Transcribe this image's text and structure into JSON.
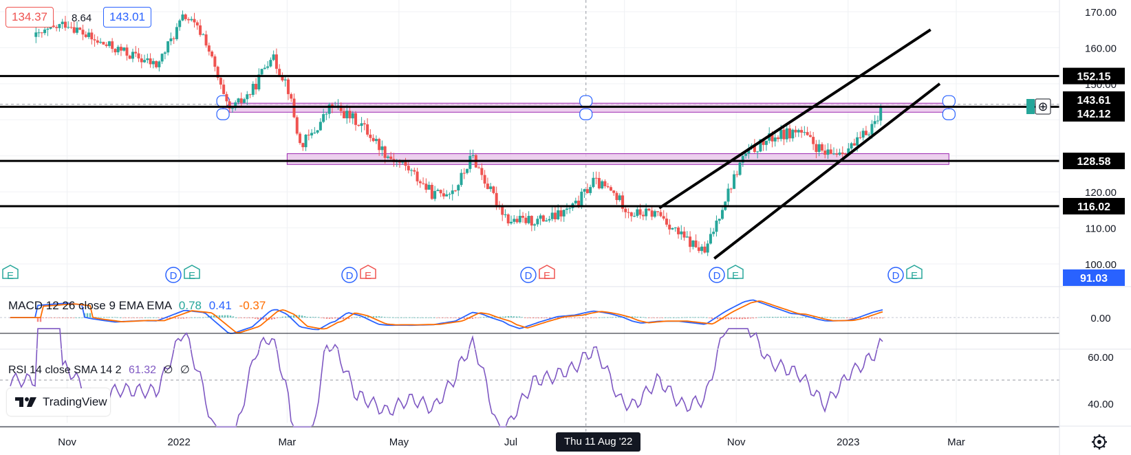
{
  "header": {
    "bid": "134.37",
    "spread": "8.64",
    "ask": "143.01"
  },
  "colors": {
    "up": "#26a69a",
    "down": "#ef5350",
    "zone_fill": "#e9c4ea",
    "zone_stroke": "#9c27b0",
    "macd_line": "#2962ff",
    "signal_line": "#ff6d00",
    "rsi_line": "#7e57c2",
    "last_price": "#26a69a"
  },
  "price_axis": {
    "ticks": [
      "170.00",
      "160.00",
      "150.00",
      "120.00",
      "110.00",
      "100.00"
    ],
    "labels": [
      {
        "text": "152.15",
        "style": "black"
      },
      {
        "text": "143.61",
        "style": "black"
      },
      {
        "text": "142.12",
        "style": "black"
      },
      {
        "text": "128.58",
        "style": "black"
      },
      {
        "text": "116.02",
        "style": "black"
      },
      {
        "text": "91.03",
        "style": "blue"
      }
    ]
  },
  "time_axis": {
    "labels": [
      "Nov",
      "2022",
      "Mar",
      "May",
      "Jul",
      "Nov",
      "2023",
      "Mar"
    ],
    "crosshair_label": "Thu 11 Aug '22"
  },
  "macd": {
    "title": "MACD 12 26 close 9 EMA EMA",
    "hist": "0.78",
    "macd": "0.41",
    "signal": "-0.37",
    "axis_tick": "0.00"
  },
  "rsi": {
    "title": "RSI 14 close SMA 14 2",
    "value": "61.32",
    "extra1": "∅",
    "extra2": "∅",
    "axis_ticks": [
      "60.00",
      "40.00"
    ]
  },
  "markers": [
    {
      "items": [
        "E"
      ]
    },
    {
      "items": [
        "D",
        "E"
      ]
    },
    {
      "items": [
        "D",
        "E"
      ]
    },
    {
      "items": [
        "D",
        "E"
      ]
    },
    {
      "items": [
        "D",
        "E"
      ]
    },
    {
      "items": [
        "D",
        "E"
      ]
    }
  ],
  "branding": {
    "logo_text": "TradingView"
  },
  "chart_data": {
    "type": "candlestick",
    "x_range": [
      "2021-10",
      "2023-03"
    ],
    "ylim": [
      95,
      172
    ],
    "last_price": 143.61,
    "horizontal_levels": [
      152.15,
      143.61,
      116.02,
      128.58
    ],
    "zones": [
      {
        "from": "2022-01-25",
        "to": "2023-02-25",
        "low": 142.1,
        "high": 144.6
      },
      {
        "from": "2022-03-01",
        "to": "2023-02-25",
        "low": 127.6,
        "high": 130.6
      }
    ],
    "channel": [
      {
        "from": [
          "2022-09-20",
          115.5
        ],
        "to": [
          "2023-02-15",
          165.0
        ]
      },
      {
        "from": [
          "2022-10-20",
          101.5
        ],
        "to": [
          "2023-02-20",
          150.0
        ]
      }
    ],
    "price_path": [
      [
        "2021-10-15",
        163
      ],
      [
        "2021-11-01",
        167
      ],
      [
        "2021-11-15",
        162
      ],
      [
        "2021-12-01",
        159
      ],
      [
        "2021-12-20",
        155
      ],
      [
        "2022-01-04",
        169
      ],
      [
        "2022-01-15",
        163
      ],
      [
        "2022-01-28",
        142
      ],
      [
        "2022-02-10",
        148
      ],
      [
        "2022-02-20",
        158
      ],
      [
        "2022-03-01",
        150
      ],
      [
        "2022-03-08",
        133
      ],
      [
        "2022-03-15",
        136
      ],
      [
        "2022-03-25",
        144
      ],
      [
        "2022-04-10",
        139
      ],
      [
        "2022-04-25",
        130
      ],
      [
        "2022-05-05",
        127
      ],
      [
        "2022-05-20",
        119
      ],
      [
        "2022-06-01",
        121
      ],
      [
        "2022-06-10",
        130
      ],
      [
        "2022-06-20",
        120
      ],
      [
        "2022-06-30",
        112
      ],
      [
        "2022-07-15",
        112
      ],
      [
        "2022-07-25",
        113
      ],
      [
        "2022-08-05",
        116
      ],
      [
        "2022-08-15",
        123
      ],
      [
        "2022-08-25",
        120
      ],
      [
        "2022-09-05",
        114
      ],
      [
        "2022-09-20",
        114
      ],
      [
        "2022-10-01",
        108
      ],
      [
        "2022-10-15",
        103
      ],
      [
        "2022-10-25",
        117
      ],
      [
        "2022-11-05",
        130
      ],
      [
        "2022-11-20",
        135
      ],
      [
        "2022-12-05",
        137
      ],
      [
        "2022-12-20",
        130
      ],
      [
        "2023-01-05",
        133
      ],
      [
        "2023-01-15",
        139
      ],
      [
        "2023-01-20",
        143.61
      ]
    ],
    "macd_values": {
      "histogram": 0.78,
      "macd": 0.41,
      "signal": -0.37
    },
    "rsi_values": {
      "rsi": 61.32,
      "upper_band": 70,
      "lower_band": 30
    }
  }
}
